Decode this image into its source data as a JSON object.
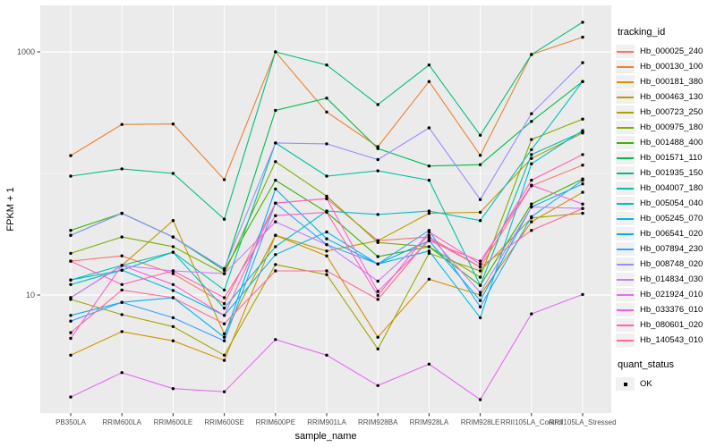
{
  "chart_data": {
    "type": "line",
    "title": "",
    "xlabel": "sample_name",
    "ylabel": "FPKM + 1",
    "y_scale": "log10",
    "y_ticks": [
      10,
      1000
    ],
    "y_minor_ticks": [
      100
    ],
    "ylim": [
      1.05,
      2400
    ],
    "grid": true,
    "legend_position": "right",
    "categories": [
      "PB350LA",
      "RRIM600LA",
      "RRIM600LE",
      "RRIM600SE",
      "RRIM600PE",
      "RRIM901LA",
      "RRIM928BA",
      "RRIM928LA",
      "RRIM928LE",
      "RRII105LA_Control",
      "RRII105LA_Stressed"
    ],
    "series": [
      {
        "name": "Hb_000025_240",
        "color": "#F8766D",
        "values": [
          19,
          21,
          15,
          8.5,
          57,
          62,
          28,
          30,
          17,
          79,
          117
        ]
      },
      {
        "name": "Hb_000130_100",
        "color": "#EA8331",
        "values": [
          140,
          253,
          255,
          89,
          1000,
          320,
          166,
          570,
          141,
          950,
          1320
        ]
      },
      {
        "name": "Hb_000181_380",
        "color": "#D89000",
        "values": [
          3.2,
          5.0,
          4.2,
          2.9,
          31,
          21,
          4.5,
          13.5,
          10,
          40,
          70
        ]
      },
      {
        "name": "Hb_000463_130",
        "color": "#C09B00",
        "values": [
          9.5,
          17.5,
          41,
          4.8,
          31,
          23,
          28,
          47,
          48,
          133,
          215
        ]
      },
      {
        "name": "Hb_000723_250",
        "color": "#A3A500",
        "values": [
          9.2,
          6.9,
          5.5,
          3.2,
          17.8,
          14.7,
          3.6,
          22,
          15.8,
          43,
          47
        ]
      },
      {
        "name": "Hb_000975_180",
        "color": "#7CAE00",
        "values": [
          22,
          30,
          25,
          15,
          125,
          65,
          27,
          25,
          14,
          190,
          280
        ]
      },
      {
        "name": "Hb_001488_400",
        "color": "#39B600",
        "values": [
          34,
          47,
          30,
          16,
          88,
          48,
          20.7,
          25,
          12,
          56,
          90
        ]
      },
      {
        "name": "Hb_001571_110",
        "color": "#00BB4E",
        "values": [
          31,
          47,
          30,
          16,
          330,
          416,
          160,
          115,
          118,
          268,
          570
        ]
      },
      {
        "name": "Hb_001935_150",
        "color": "#00BF7D",
        "values": [
          95,
          109,
          100,
          42,
          1000,
          780,
          368,
          780,
          206,
          950,
          1750
        ]
      },
      {
        "name": "Hb_004007_180",
        "color": "#00C1A3",
        "values": [
          13.3,
          17.5,
          22.5,
          11,
          178,
          95,
          105,
          88,
          12,
          143,
          220
        ]
      },
      {
        "name": "Hb_005054_040",
        "color": "#00BFC4",
        "values": [
          12.2,
          16,
          22.5,
          7.8,
          25,
          49,
          46,
          49,
          41,
          157,
          570
        ]
      },
      {
        "name": "Hb_005245_070",
        "color": "#00BAE0",
        "values": [
          13.3,
          16,
          10.9,
          6.8,
          21.5,
          33,
          18,
          23,
          6.5,
          120,
          225
        ]
      },
      {
        "name": "Hb_006541_020",
        "color": "#00B0F6",
        "values": [
          6.8,
          8.7,
          9.5,
          4.5,
          74.5,
          29,
          18,
          28,
          9,
          53,
          82
        ]
      },
      {
        "name": "Hb_007894_230",
        "color": "#35A2FF",
        "values": [
          6.1,
          8.7,
          6.5,
          4.2,
          57,
          26,
          18,
          34,
          8,
          44,
          88
        ]
      },
      {
        "name": "Hb_008748_020",
        "color": "#9590FF",
        "values": [
          31,
          47,
          30,
          16.5,
          178,
          175,
          130,
          237,
          61,
          310,
          815
        ]
      },
      {
        "name": "Hb_014834_030",
        "color": "#C77CFF",
        "values": [
          9.5,
          17.5,
          15.8,
          15,
          40,
          26,
          13,
          31,
          10.5,
          53,
          51.5
        ]
      },
      {
        "name": "Hb_021924_010",
        "color": "#E76BF3",
        "values": [
          1.45,
          2.3,
          1.7,
          1.6,
          4.3,
          3.2,
          1.8,
          2.7,
          1.38,
          7.0,
          10.1
        ]
      },
      {
        "name": "Hb_033376_010",
        "color": "#FA62DB",
        "values": [
          4.4,
          17.5,
          12.2,
          6.8,
          57,
          62,
          10.7,
          28,
          19,
          80,
          56
        ]
      },
      {
        "name": "Hb_080601_020",
        "color": "#FF62BC",
        "values": [
          19,
          12.2,
          15.8,
          9.5,
          45,
          48,
          9.9,
          33,
          18,
          88,
          143
        ]
      },
      {
        "name": "Hb_140543_010",
        "color": "#FF6A98",
        "values": [
          4.9,
          11,
          9.5,
          5.8,
          15.8,
          15.8,
          9.2,
          29,
          17,
          34,
          51.5
        ]
      }
    ],
    "point_color": "#000000",
    "legend": {
      "title": "tracking_id"
    },
    "quant_legend": {
      "title": "quant_status",
      "items": [
        {
          "label": "OK"
        }
      ]
    }
  }
}
